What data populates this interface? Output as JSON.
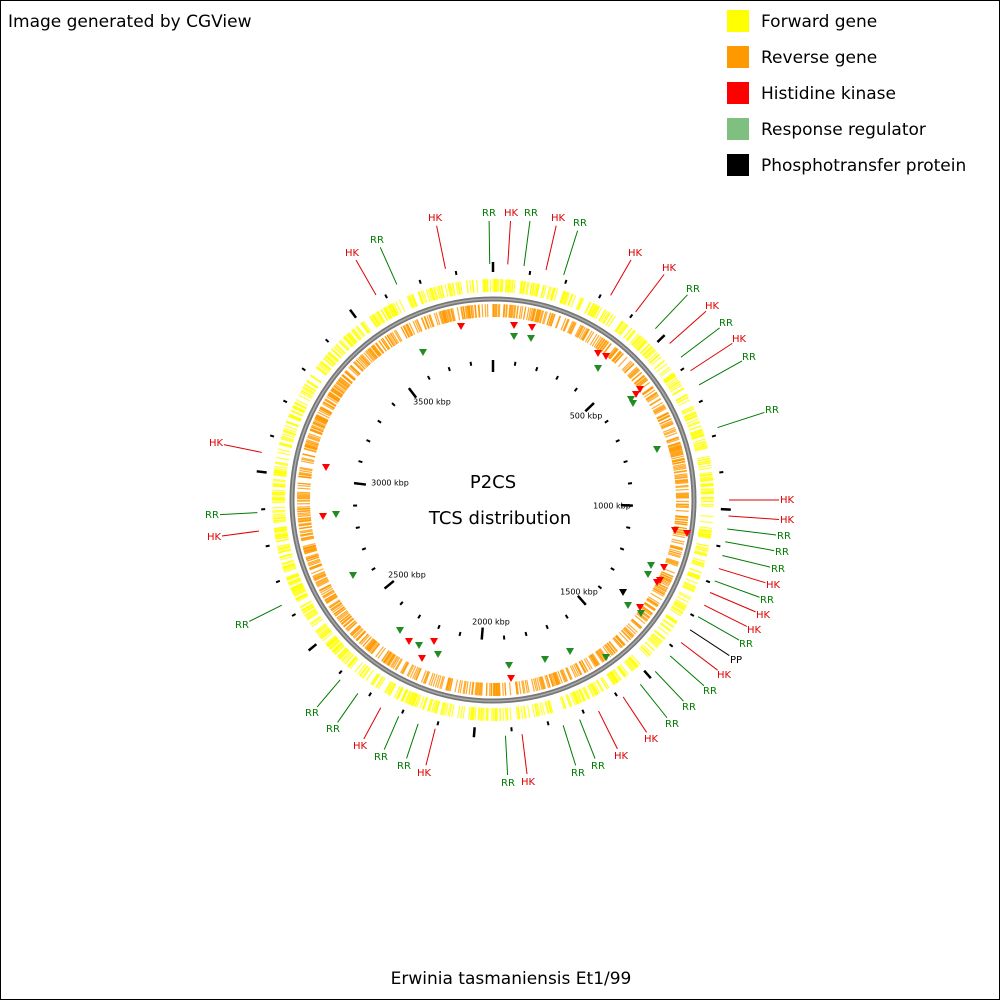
{
  "header": {
    "credit": "Image generated by CGView"
  },
  "legend": [
    {
      "label": "Forward gene",
      "color": "#ffff00"
    },
    {
      "label": "Reverse gene",
      "color": "#ff9900"
    },
    {
      "label": "Histidine kinase",
      "color": "#ff0000"
    },
    {
      "label": "Response regulator",
      "color": "#7fbf7f"
    },
    {
      "label": "Phosphotransfer protein",
      "color": "#000000"
    }
  ],
  "center": {
    "title": "P2CS",
    "subtitle": "TCS distribution"
  },
  "scale_labels": [
    "500 kbp",
    "1000 kbp",
    "1500 kbp",
    "2000 kbp",
    "2500 kbp",
    "3000 kbp",
    "3500 kbp"
  ],
  "feature_labels": [
    "HK",
    "RR",
    "HK",
    "RR",
    "HK",
    "RR",
    "HK",
    "HK",
    "RR",
    "HK",
    "RR",
    "HK",
    "RR",
    "RR",
    "HK",
    "HK",
    "RR",
    "RR",
    "RR",
    "HK",
    "RR",
    "HK",
    "HK",
    "RR",
    "PP",
    "HK",
    "RR",
    "RR",
    "RR",
    "HK",
    "HK",
    "RR",
    "RR",
    "HK",
    "RR",
    "HK",
    "RR",
    "RR",
    "HK",
    "RR",
    "RR",
    "RR",
    "HK",
    "RR",
    "HK",
    "HK",
    "RR"
  ],
  "footer": {
    "organism": "Erwinia tasmaniensis Et1/99"
  }
}
